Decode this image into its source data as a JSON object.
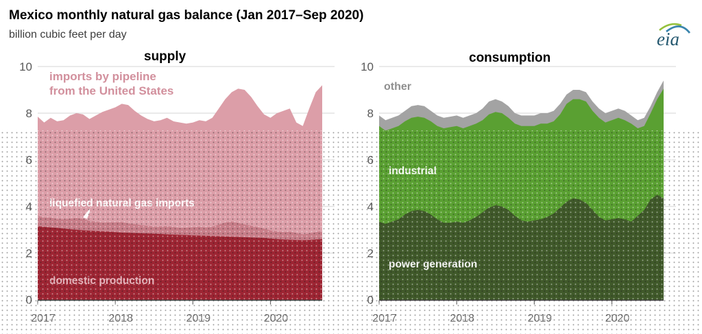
{
  "header": {
    "title": "Mexico monthly natural gas balance (Jan 2017–Sep 2020)",
    "subtitle": "billion cubic feet per day",
    "logo_text": "eia",
    "logo_colors": {
      "text": "#24586f",
      "swoosh_green": "#95c13d",
      "swoosh_blue": "#3a85ad"
    }
  },
  "supply_chart": {
    "title": "supply",
    "labels": {
      "pipeline_line1": "imports by pipeline",
      "pipeline_line2": "from the United States",
      "lng": "liquefied natural gas imports",
      "domestic": "domestic production"
    }
  },
  "consumption_chart": {
    "title": "consumption",
    "labels": {
      "other": "other",
      "industrial": "industrial",
      "power": "power generation"
    }
  },
  "axis_style": {
    "gridline_color": "#d6d6d6",
    "axis_line_color": "#3f3f3f",
    "ytick_color": "#595959",
    "xtick_color": "#6e6e6e"
  },
  "chart_data": [
    {
      "type": "area",
      "title": "supply",
      "stacked": true,
      "ylabel": "billion cubic feet per day",
      "ylim": [
        0,
        10
      ],
      "yticks": [
        0,
        2,
        4,
        6,
        8,
        10
      ],
      "grid": "horizontal",
      "legend_position": "labels-on-areas",
      "x_tick_labels": [
        "2017",
        "2018",
        "2019",
        "2020"
      ],
      "x_tick_month_index": [
        0,
        12,
        24,
        36
      ],
      "x_months": [
        "2017-01",
        "2017-02",
        "2017-03",
        "2017-04",
        "2017-05",
        "2017-06",
        "2017-07",
        "2017-08",
        "2017-09",
        "2017-10",
        "2017-11",
        "2017-12",
        "2018-01",
        "2018-02",
        "2018-03",
        "2018-04",
        "2018-05",
        "2018-06",
        "2018-07",
        "2018-08",
        "2018-09",
        "2018-10",
        "2018-11",
        "2018-12",
        "2019-01",
        "2019-02",
        "2019-03",
        "2019-04",
        "2019-05",
        "2019-06",
        "2019-07",
        "2019-08",
        "2019-09",
        "2019-10",
        "2019-11",
        "2019-12",
        "2020-01",
        "2020-02",
        "2020-03",
        "2020-04",
        "2020-05",
        "2020-06",
        "2020-07",
        "2020-08",
        "2020-09"
      ],
      "series": [
        {
          "name": "domestic production",
          "color": "#9d2533",
          "values": [
            3.15,
            3.12,
            3.1,
            3.08,
            3.05,
            3.02,
            3.0,
            2.98,
            2.96,
            2.95,
            2.93,
            2.92,
            2.9,
            2.88,
            2.87,
            2.86,
            2.85,
            2.84,
            2.83,
            2.82,
            2.8,
            2.79,
            2.78,
            2.77,
            2.76,
            2.75,
            2.74,
            2.73,
            2.72,
            2.71,
            2.7,
            2.69,
            2.68,
            2.67,
            2.66,
            2.65,
            2.62,
            2.6,
            2.58,
            2.57,
            2.56,
            2.55,
            2.56,
            2.58,
            2.6
          ]
        },
        {
          "name": "liquefied natural gas imports",
          "color": "#c87e89",
          "values": [
            0.45,
            0.4,
            0.42,
            0.38,
            0.4,
            0.45,
            0.5,
            0.48,
            0.42,
            0.4,
            0.38,
            0.4,
            0.42,
            0.45,
            0.4,
            0.38,
            0.35,
            0.33,
            0.3,
            0.32,
            0.35,
            0.33,
            0.3,
            0.32,
            0.35,
            0.38,
            0.36,
            0.4,
            0.5,
            0.6,
            0.65,
            0.6,
            0.55,
            0.5,
            0.45,
            0.4,
            0.35,
            0.33,
            0.32,
            0.35,
            0.3,
            0.25,
            0.28,
            0.32,
            0.35
          ]
        },
        {
          "name": "imports by pipeline from the United States",
          "color": "#dc9ea8",
          "values": [
            4.25,
            4.08,
            4.28,
            4.19,
            4.25,
            4.43,
            4.5,
            4.49,
            4.37,
            4.55,
            4.74,
            4.83,
            4.93,
            5.07,
            5.08,
            4.86,
            4.7,
            4.58,
            4.52,
            4.56,
            4.65,
            4.53,
            4.52,
            4.46,
            4.49,
            4.57,
            4.55,
            4.67,
            4.98,
            5.29,
            5.55,
            5.76,
            5.77,
            5.53,
            5.19,
            4.9,
            4.83,
            5.07,
            5.2,
            5.28,
            4.74,
            4.65,
            5.36,
            6.0,
            6.25
          ]
        }
      ]
    },
    {
      "type": "area",
      "title": "consumption",
      "stacked": true,
      "ylabel": "billion cubic feet per day",
      "ylim": [
        0,
        10
      ],
      "yticks": [
        0,
        2,
        4,
        6,
        8,
        10
      ],
      "grid": "horizontal",
      "legend_position": "labels-on-areas",
      "x_tick_labels": [
        "2017",
        "2018",
        "2019",
        "2020"
      ],
      "x_tick_month_index": [
        0,
        12,
        24,
        36
      ],
      "x_months": [
        "2017-01",
        "2017-02",
        "2017-03",
        "2017-04",
        "2017-05",
        "2017-06",
        "2017-07",
        "2017-08",
        "2017-09",
        "2017-10",
        "2017-11",
        "2017-12",
        "2018-01",
        "2018-02",
        "2018-03",
        "2018-04",
        "2018-05",
        "2018-06",
        "2018-07",
        "2018-08",
        "2018-09",
        "2018-10",
        "2018-11",
        "2018-12",
        "2019-01",
        "2019-02",
        "2019-03",
        "2019-04",
        "2019-05",
        "2019-06",
        "2019-07",
        "2019-08",
        "2019-09",
        "2019-10",
        "2019-11",
        "2019-12",
        "2020-01",
        "2020-02",
        "2020-03",
        "2020-04",
        "2020-05",
        "2020-06",
        "2020-07",
        "2020-08",
        "2020-09"
      ],
      "series": [
        {
          "name": "power generation",
          "color": "#40592a",
          "values": [
            3.35,
            3.25,
            3.35,
            3.45,
            3.65,
            3.8,
            3.85,
            3.8,
            3.65,
            3.45,
            3.3,
            3.3,
            3.35,
            3.3,
            3.4,
            3.55,
            3.75,
            3.95,
            4.05,
            4.0,
            3.85,
            3.6,
            3.4,
            3.35,
            3.4,
            3.45,
            3.55,
            3.7,
            3.95,
            4.2,
            4.35,
            4.3,
            4.15,
            3.85,
            3.55,
            3.4,
            3.45,
            3.5,
            3.45,
            3.35,
            3.6,
            3.85,
            4.3,
            4.5,
            4.35
          ]
        },
        {
          "name": "industrial",
          "color": "#5aa032",
          "values": [
            4.1,
            4.0,
            4.0,
            4.0,
            4.0,
            4.0,
            4.0,
            4.0,
            4.0,
            4.0,
            4.05,
            4.1,
            4.1,
            4.05,
            4.05,
            4.0,
            3.95,
            4.0,
            4.0,
            4.0,
            3.95,
            3.95,
            4.05,
            4.1,
            4.05,
            4.1,
            4.0,
            3.95,
            4.0,
            4.2,
            4.25,
            4.3,
            4.35,
            4.25,
            4.25,
            4.2,
            4.25,
            4.3,
            4.25,
            4.2,
            3.75,
            3.6,
            3.7,
            4.1,
            4.7
          ]
        },
        {
          "name": "other",
          "color": "#a3a3a3",
          "values": [
            0.45,
            0.45,
            0.45,
            0.45,
            0.45,
            0.5,
            0.5,
            0.5,
            0.45,
            0.45,
            0.45,
            0.45,
            0.45,
            0.45,
            0.45,
            0.45,
            0.5,
            0.55,
            0.55,
            0.5,
            0.5,
            0.45,
            0.45,
            0.45,
            0.45,
            0.45,
            0.45,
            0.45,
            0.45,
            0.4,
            0.4,
            0.4,
            0.4,
            0.4,
            0.4,
            0.4,
            0.4,
            0.4,
            0.4,
            0.35,
            0.35,
            0.35,
            0.3,
            0.3,
            0.35
          ]
        }
      ]
    }
  ]
}
